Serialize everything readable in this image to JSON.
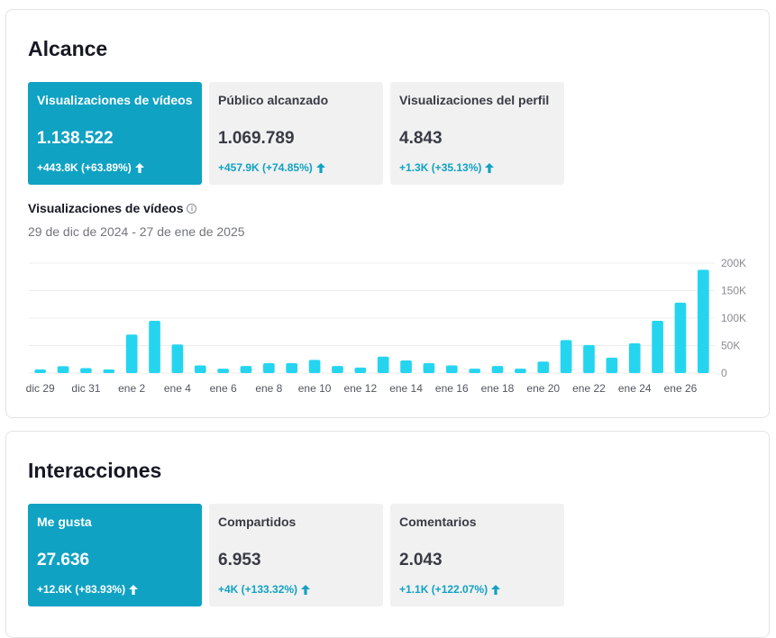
{
  "reach": {
    "title": "Alcance",
    "cards": [
      {
        "label": "Visualizaciones de vídeos",
        "value": "1.138.522",
        "delta": "+443.8K (+63.89%)",
        "active": true
      },
      {
        "label": "Público alcanzado",
        "value": "1.069.789",
        "delta": "+457.9K (+74.85%)",
        "active": false
      },
      {
        "label": "Visualizaciones del perfil",
        "value": "4.843",
        "delta": "+1.3K (+35.13%)",
        "active": false
      }
    ],
    "chart_title": "Visualizaciones de vídeos",
    "chart_info_icon": "info-icon",
    "chart_range": "29 de dic de 2024 - 27 de ene de 2025"
  },
  "interactions": {
    "title": "Interacciones",
    "cards": [
      {
        "label": "Me gusta",
        "value": "27.636",
        "delta": "+12.6K (+83.93%)",
        "active": true
      },
      {
        "label": "Compartidos",
        "value": "6.953",
        "delta": "+4K (+133.32%)",
        "active": false
      },
      {
        "label": "Comentarios",
        "value": "2.043",
        "delta": "+1.1K (+122.07%)",
        "active": false
      }
    ]
  },
  "colors": {
    "accent": "#10a2c3",
    "bar": "#25d5ef",
    "grid": "#ececed",
    "axis_text": "#8a8b91"
  },
  "chart_data": {
    "type": "bar",
    "categories": [
      "dic 29",
      "dic 30",
      "dic 31",
      "ene 1",
      "ene 2",
      "ene 3",
      "ene 4",
      "ene 5",
      "ene 6",
      "ene 7",
      "ene 8",
      "ene 9",
      "ene 10",
      "ene 11",
      "ene 12",
      "ene 13",
      "ene 14",
      "ene 15",
      "ene 16",
      "ene 17",
      "ene 18",
      "ene 19",
      "ene 20",
      "ene 21",
      "ene 22",
      "ene 23",
      "ene 24",
      "ene 25",
      "ene 26",
      "ene 27"
    ],
    "x_tick_labels": [
      "dic 29",
      "",
      "dic 31",
      "",
      "ene 2",
      "",
      "ene 4",
      "",
      "ene 6",
      "",
      "ene 8",
      "",
      "ene 10",
      "",
      "ene 12",
      "",
      "ene 14",
      "",
      "ene 16",
      "",
      "ene 18",
      "",
      "ene 20",
      "",
      "ene 22",
      "",
      "ene 24",
      "",
      "ene 26",
      ""
    ],
    "values": [
      6500,
      12500,
      9000,
      6500,
      70000,
      95000,
      52000,
      14000,
      8000,
      13000,
      18000,
      18000,
      24000,
      13000,
      10000,
      30000,
      23000,
      18000,
      14000,
      8000,
      13000,
      8000,
      21000,
      60000,
      51000,
      28000,
      54000,
      95000,
      128000,
      188000
    ],
    "ylim": [
      0,
      200000
    ],
    "y_ticks": [
      0,
      50000,
      100000,
      150000,
      200000
    ],
    "y_tick_labels": [
      "0",
      "50K",
      "100K",
      "150K",
      "200K"
    ],
    "grid": true
  }
}
